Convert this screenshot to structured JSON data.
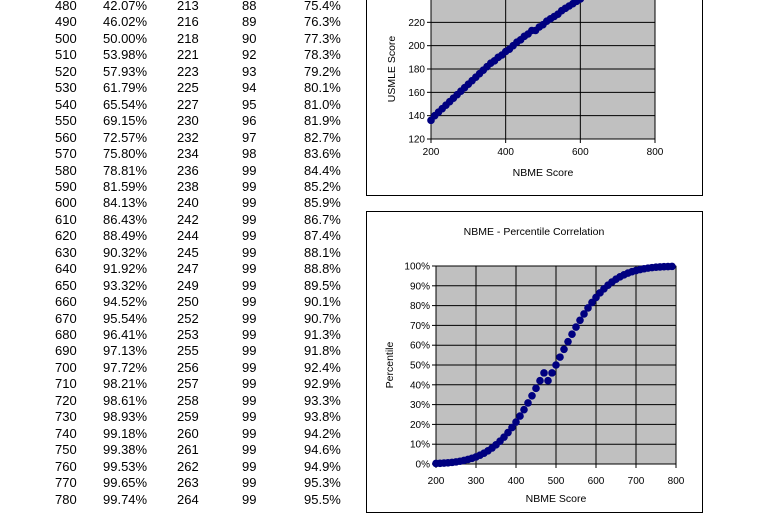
{
  "table": {
    "rows": [
      [
        "480",
        "42.07%",
        "213",
        "88",
        "75.4%"
      ],
      [
        "490",
        "46.02%",
        "216",
        "89",
        "76.3%"
      ],
      [
        "500",
        "50.00%",
        "218",
        "90",
        "77.3%"
      ],
      [
        "510",
        "53.98%",
        "221",
        "92",
        "78.3%"
      ],
      [
        "520",
        "57.93%",
        "223",
        "93",
        "79.2%"
      ],
      [
        "530",
        "61.79%",
        "225",
        "94",
        "80.1%"
      ],
      [
        "540",
        "65.54%",
        "227",
        "95",
        "81.0%"
      ],
      [
        "550",
        "69.15%",
        "230",
        "96",
        "81.9%"
      ],
      [
        "560",
        "72.57%",
        "232",
        "97",
        "82.7%"
      ],
      [
        "570",
        "75.80%",
        "234",
        "98",
        "83.6%"
      ],
      [
        "580",
        "78.81%",
        "236",
        "99",
        "84.4%"
      ],
      [
        "590",
        "81.59%",
        "238",
        "99",
        "85.2%"
      ],
      [
        "600",
        "84.13%",
        "240",
        "99",
        "85.9%"
      ],
      [
        "610",
        "86.43%",
        "242",
        "99",
        "86.7%"
      ],
      [
        "620",
        "88.49%",
        "244",
        "99",
        "87.4%"
      ],
      [
        "630",
        "90.32%",
        "245",
        "99",
        "88.1%"
      ],
      [
        "640",
        "91.92%",
        "247",
        "99",
        "88.8%"
      ],
      [
        "650",
        "93.32%",
        "249",
        "99",
        "89.5%"
      ],
      [
        "660",
        "94.52%",
        "250",
        "99",
        "90.1%"
      ],
      [
        "670",
        "95.54%",
        "252",
        "99",
        "90.7%"
      ],
      [
        "680",
        "96.41%",
        "253",
        "99",
        "91.3%"
      ],
      [
        "690",
        "97.13%",
        "255",
        "99",
        "91.8%"
      ],
      [
        "700",
        "97.72%",
        "256",
        "99",
        "92.4%"
      ],
      [
        "710",
        "98.21%",
        "257",
        "99",
        "92.9%"
      ],
      [
        "720",
        "98.61%",
        "258",
        "99",
        "93.3%"
      ],
      [
        "730",
        "98.93%",
        "259",
        "99",
        "93.8%"
      ],
      [
        "740",
        "99.18%",
        "260",
        "99",
        "94.2%"
      ],
      [
        "750",
        "99.38%",
        "261",
        "99",
        "94.6%"
      ],
      [
        "760",
        "99.53%",
        "262",
        "99",
        "94.9%"
      ],
      [
        "770",
        "99.65%",
        "263",
        "99",
        "95.3%"
      ],
      [
        "780",
        "99.74%",
        "264",
        "99",
        "95.5%"
      ]
    ]
  },
  "chart_data": [
    {
      "type": "scatter",
      "title": "",
      "xlabel": "NBME Score",
      "ylabel": "USMLE Score",
      "xlim": [
        200,
        800
      ],
      "ylim": [
        120,
        240
      ],
      "xticks": [
        "200",
        "400",
        "600",
        "800"
      ],
      "yticks": [
        "120",
        "140",
        "160",
        "180",
        "200",
        "220"
      ],
      "grid": true,
      "plot_bg": "#c0c0c0",
      "marker_color": "#000080",
      "series": [
        {
          "x": [
            200,
            210,
            220,
            230,
            240,
            250,
            260,
            270,
            280,
            290,
            300,
            310,
            320,
            330,
            340,
            350,
            360,
            370,
            380,
            390,
            400,
            410,
            420,
            430,
            440,
            450,
            460,
            470,
            480,
            490,
            500,
            510,
            520,
            530,
            540,
            550,
            560,
            570,
            580,
            590,
            600
          ],
          "y": [
            136,
            140,
            143,
            146,
            149,
            152,
            155,
            158,
            161,
            164,
            167,
            170,
            173,
            176,
            179,
            182,
            185,
            187,
            190,
            192,
            195,
            197,
            200,
            203,
            205,
            208,
            210,
            213,
            213,
            216,
            218,
            221,
            223,
            225,
            227,
            230,
            232,
            234,
            236,
            238,
            240
          ]
        }
      ]
    },
    {
      "type": "scatter",
      "title": "NBME - Percentile Correlation",
      "xlabel": "NBME Score",
      "ylabel": "Percentile",
      "xlim": [
        200,
        800
      ],
      "ylim": [
        0,
        100
      ],
      "xticks": [
        "200",
        "300",
        "400",
        "500",
        "600",
        "700",
        "800"
      ],
      "yticks": [
        "0%",
        "10%",
        "20%",
        "30%",
        "40%",
        "50%",
        "60%",
        "70%",
        "80%",
        "90%",
        "100%"
      ],
      "grid": true,
      "plot_bg": "#c0c0c0",
      "marker_color": "#000080",
      "series": [
        {
          "x": [
            200,
            210,
            220,
            230,
            240,
            250,
            260,
            270,
            280,
            290,
            300,
            310,
            320,
            330,
            340,
            350,
            360,
            370,
            380,
            390,
            400,
            410,
            420,
            430,
            440,
            450,
            460,
            470,
            480,
            490,
            500,
            510,
            520,
            530,
            540,
            550,
            560,
            570,
            580,
            590,
            600,
            610,
            620,
            630,
            640,
            650,
            660,
            670,
            680,
            690,
            700,
            710,
            720,
            730,
            740,
            750,
            760,
            770,
            780,
            790
          ],
          "y": [
            0.26,
            0.35,
            0.47,
            0.62,
            0.82,
            1.07,
            1.39,
            1.79,
            2.28,
            2.87,
            3.59,
            4.46,
            5.48,
            6.68,
            8.08,
            9.68,
            11.51,
            13.57,
            15.87,
            18.41,
            21.19,
            24.2,
            27.43,
            30.85,
            34.46,
            38.21,
            42.07,
            46.02,
            42.07,
            46.02,
            50.0,
            53.98,
            57.93,
            61.79,
            65.54,
            69.15,
            72.57,
            75.8,
            78.81,
            81.59,
            84.13,
            86.43,
            88.49,
            90.32,
            91.92,
            93.32,
            94.52,
            95.54,
            96.41,
            97.13,
            97.72,
            98.21,
            98.61,
            98.93,
            99.18,
            99.38,
            99.53,
            99.65,
            99.74,
            99.81
          ]
        }
      ]
    }
  ]
}
